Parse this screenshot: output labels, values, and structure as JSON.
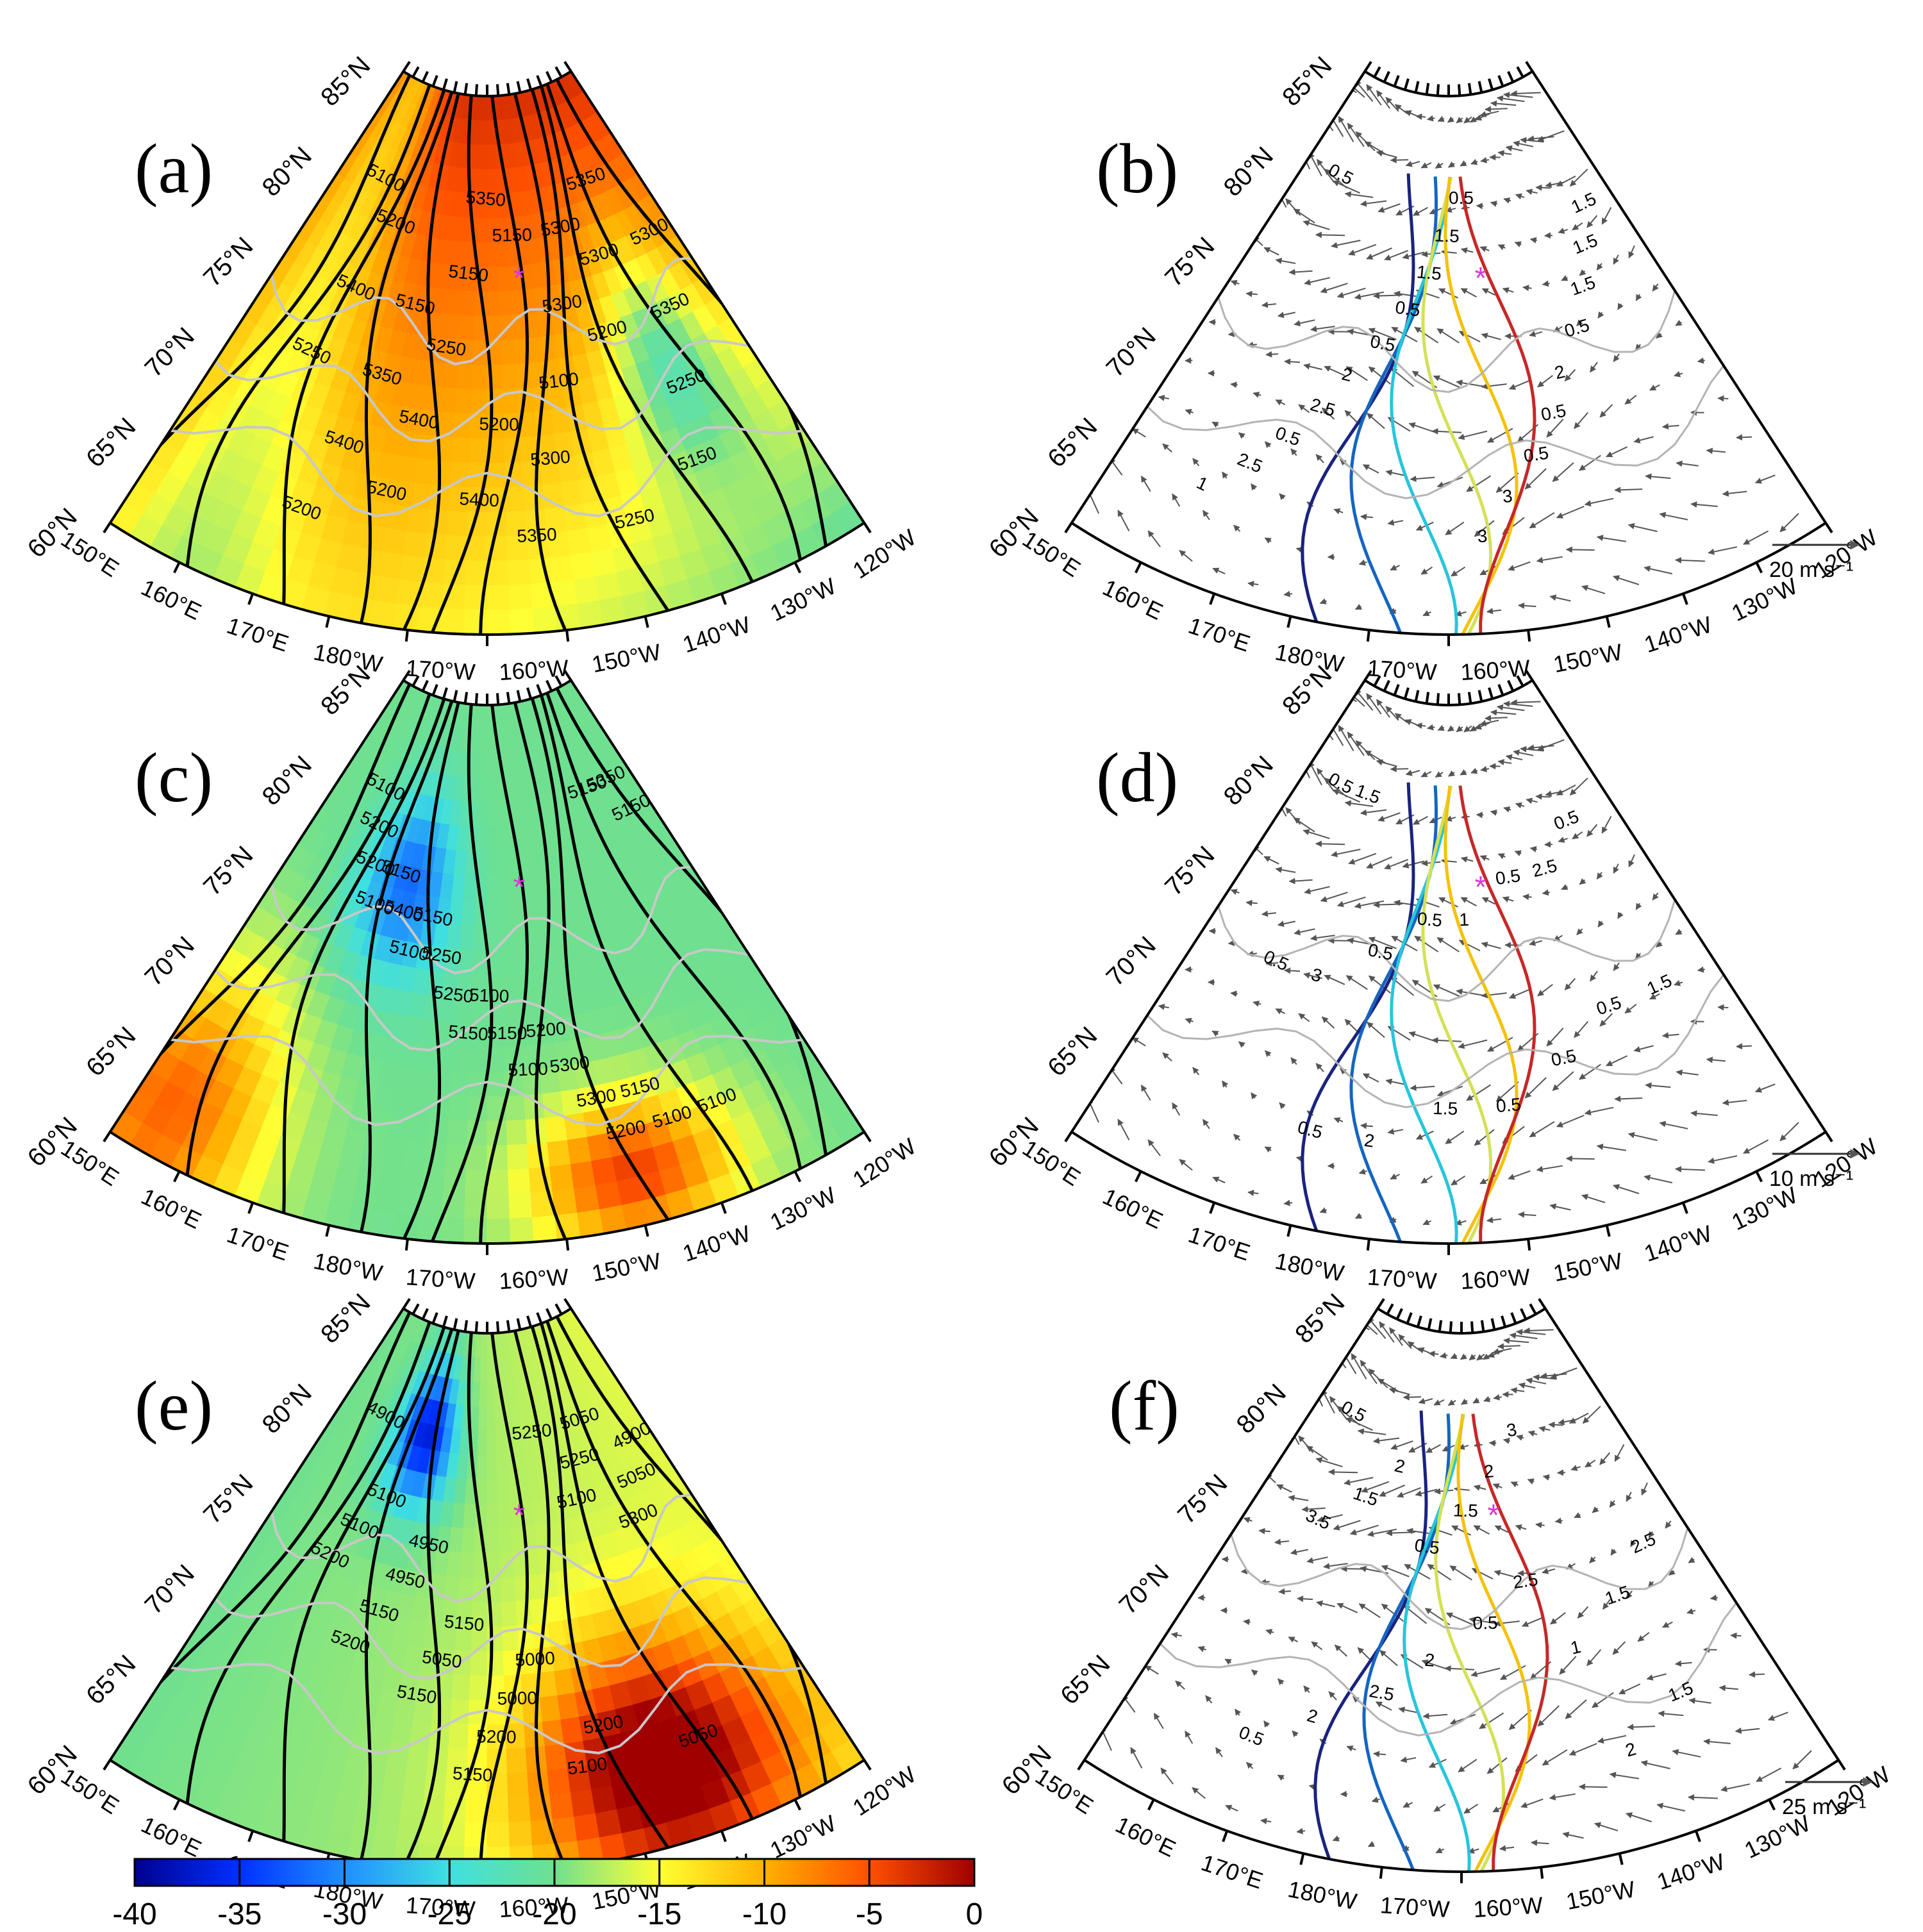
{
  "figure": {
    "panel_labels": [
      "(a)",
      "(b)",
      "(c)",
      "(d)",
      "(e)",
      "(f)"
    ],
    "lat_labels": [
      "85°N",
      "80°N",
      "75°N",
      "70°N",
      "65°N",
      "60°N"
    ],
    "lon_labels_left": [
      "150°E",
      "160°E",
      "170°E",
      "180°W"
    ],
    "lon_labels_right": [
      "170°W",
      "160°W",
      "150°W",
      "140°W",
      "130°W",
      "120°W"
    ],
    "marker": "*",
    "station_marker_color": "#d63ad6"
  },
  "panels": {
    "a": {
      "label": "(a)",
      "type": "filled-field",
      "contour_labels": [
        "5100",
        "5150",
        "5200",
        "5250",
        "5300",
        "5350",
        "5400",
        "5300",
        "5350",
        "5400",
        "5350",
        "5300",
        "5250",
        "5200",
        "5150",
        "5100",
        "5150",
        "5200",
        "5250",
        "5300",
        "5350",
        "5400",
        "5400",
        "5350",
        "5300",
        "5250",
        "5200",
        "5150",
        "5200"
      ]
    },
    "b": {
      "label": "(b)",
      "type": "vector-field",
      "contour_labels": [
        "0.5",
        "0.5",
        "0.5",
        "1",
        "1.5",
        "2",
        "2.5",
        "1.5",
        "0.5",
        "0.5",
        "0.5",
        "1.5",
        "2.5",
        "3",
        "1.5",
        "2",
        "3",
        "1.5",
        "0.5",
        "0.5"
      ],
      "reference_vector": "20 m s⁻¹"
    },
    "c": {
      "label": "(c)",
      "type": "filled-field",
      "contour_labels": [
        "5100",
        "5150",
        "5200",
        "5100",
        "5150",
        "5100",
        "5150",
        "5200",
        "5250",
        "5300",
        "5350",
        "5400",
        "5150",
        "5100",
        "5200",
        "5250",
        "5300",
        "5150",
        "5100",
        "5100",
        "5150",
        "5100",
        "5150",
        "5200"
      ]
    },
    "d": {
      "label": "(d)",
      "type": "vector-field",
      "contour_labels": [
        "0.5",
        "0.5",
        "0.5",
        "0.5",
        "0.5",
        "0.5",
        "1.5",
        "0.5",
        "0.5",
        "0.5",
        "1.5",
        "1",
        "1.5",
        "2",
        "2.5",
        "3",
        "0.5"
      ],
      "reference_vector": "10 m s⁻¹"
    },
    "e": {
      "label": "(e)",
      "type": "filled-field",
      "contour_labels": [
        "4900",
        "4950",
        "5000",
        "5050",
        "5100",
        "5150",
        "5200",
        "4900",
        "4950",
        "5000",
        "5050",
        "5100",
        "5050",
        "5100",
        "5050",
        "5150",
        "5200",
        "5250",
        "5200",
        "5150",
        "5250",
        "5300",
        "5200",
        "5150",
        "5100"
      ]
    },
    "f": {
      "label": "(f)",
      "type": "vector-field",
      "contour_labels": [
        "0.5",
        "0.5",
        "1",
        "0.5",
        "1.5",
        "1.5",
        "2",
        "2",
        "2.5",
        "2.5",
        "3",
        "3.5",
        "2",
        "2",
        "1.5",
        "0.5",
        "1.5",
        "2",
        "2.5"
      ],
      "reference_vector": "25 m s⁻¹"
    }
  },
  "colorbar": {
    "ticks": [
      "-40",
      "-35",
      "-30",
      "-25",
      "-20",
      "-15",
      "-10",
      "-5",
      "0"
    ],
    "colors": [
      "#00008f",
      "#0030ff",
      "#1f8fff",
      "#3fe0e0",
      "#6fe08f",
      "#ffff33",
      "#ffb000",
      "#ff5000",
      "#a00000"
    ]
  }
}
